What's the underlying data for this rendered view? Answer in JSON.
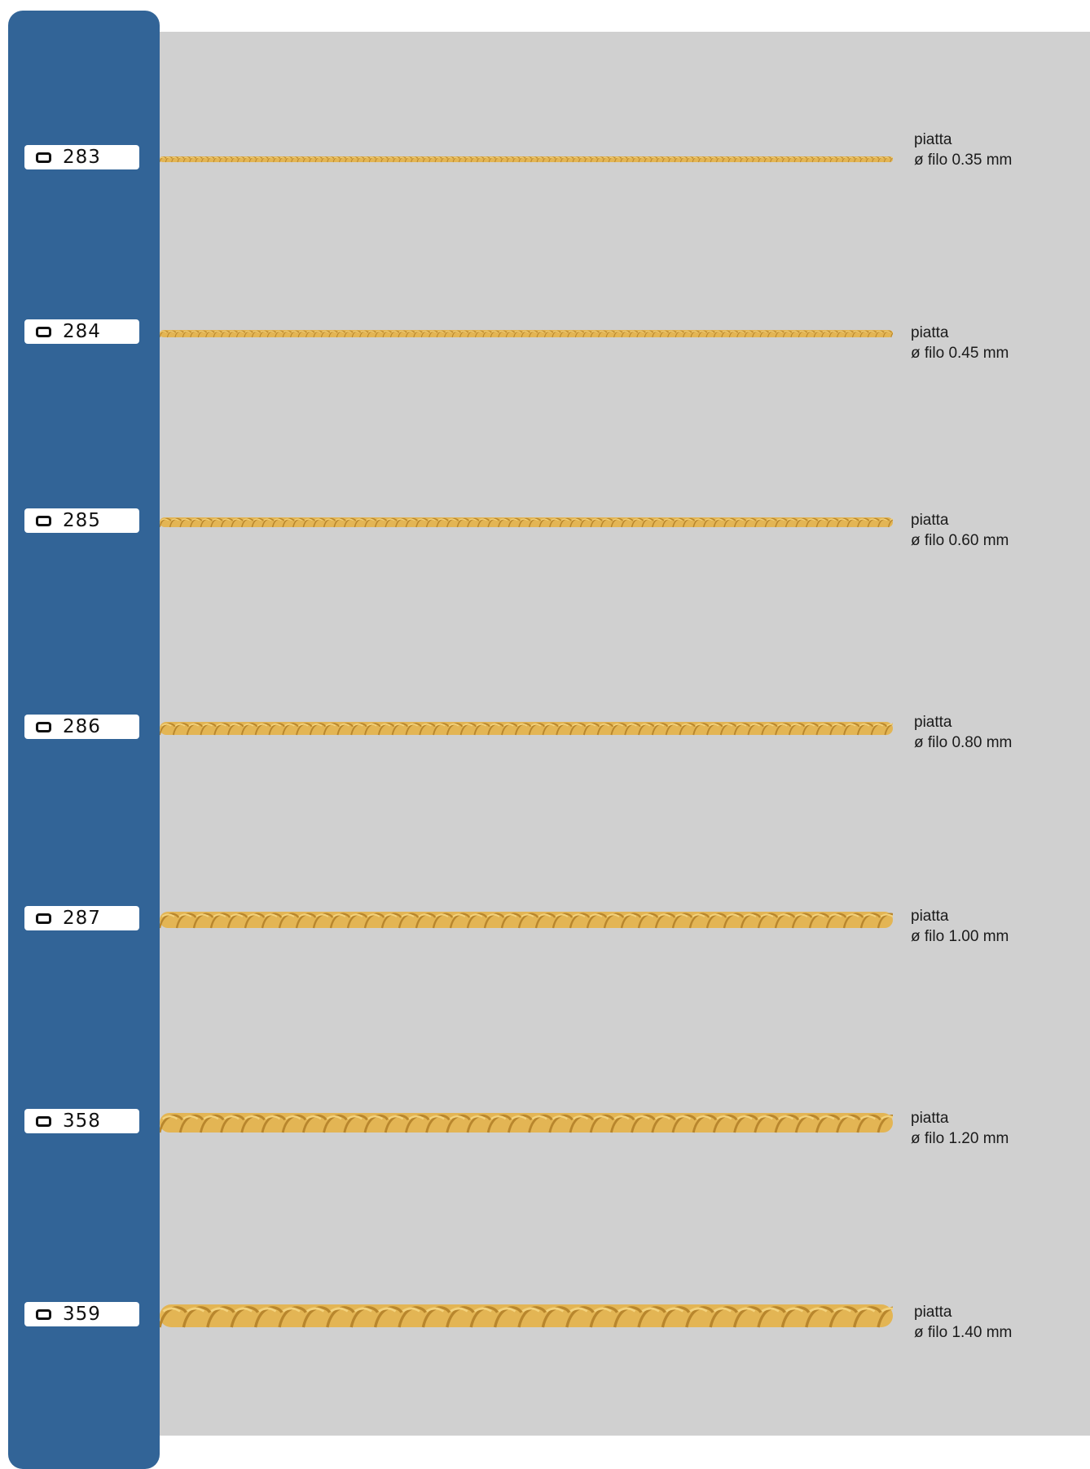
{
  "colors": {
    "sidebar": "#326497",
    "panel": "#d0d0d0",
    "gold": "#e3b554",
    "gold_dark": "#b8862d",
    "gold_light": "#f3d27c"
  },
  "badge_icon": "rounded-square-icon",
  "chains": [
    {
      "code": "283",
      "type": "piatta",
      "wire": "ø filo 0.35 mm",
      "wire_mm": 0.35
    },
    {
      "code": "284",
      "type": "piatta",
      "wire": "ø filo 0.45 mm",
      "wire_mm": 0.45
    },
    {
      "code": "285",
      "type": "piatta",
      "wire": "ø filo 0.60 mm",
      "wire_mm": 0.6
    },
    {
      "code": "286",
      "type": "piatta",
      "wire": "ø filo 0.80 mm",
      "wire_mm": 0.8
    },
    {
      "code": "287",
      "type": "piatta",
      "wire": "ø filo 1.00 mm",
      "wire_mm": 1.0
    },
    {
      "code": "358",
      "type": "piatta",
      "wire": "ø filo 1.20 mm",
      "wire_mm": 1.2
    },
    {
      "code": "359",
      "type": "piatta",
      "wire": "ø filo 1.40 mm",
      "wire_mm": 1.4
    }
  ]
}
